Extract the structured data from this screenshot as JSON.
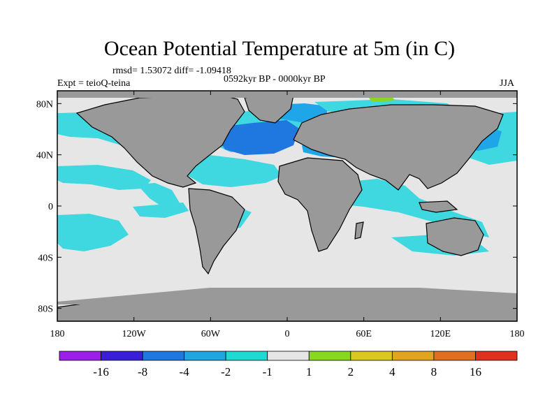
{
  "title": "Ocean Potential Temperature at 5m (in C)",
  "stats": "rmsd= 1.53072 diff= -1.09418",
  "experiment": "Expt = teioQ-teina",
  "period": "0592kyr BP - 0000kyr BP",
  "season": "JJA",
  "lat_axis": {
    "ticks": [
      {
        "label": "80N",
        "value": 80
      },
      {
        "label": "40N",
        "value": 40
      },
      {
        "label": "0",
        "value": 0
      },
      {
        "label": "40S",
        "value": -40
      },
      {
        "label": "80S",
        "value": -80
      }
    ]
  },
  "lon_axis": {
    "ticks": [
      {
        "label": "180",
        "value": -180
      },
      {
        "label": "120W",
        "value": -120
      },
      {
        "label": "60W",
        "value": -60
      },
      {
        "label": "0",
        "value": 0
      },
      {
        "label": "60E",
        "value": 60
      },
      {
        "label": "120E",
        "value": 120
      },
      {
        "label": "180",
        "value": 180
      }
    ]
  },
  "colorbar": {
    "bins": [
      {
        "color": "#9b1fe8"
      },
      {
        "color": "#3b1fd8"
      },
      {
        "color": "#1f78e0"
      },
      {
        "color": "#1fa6e0"
      },
      {
        "color": "#1fdad0"
      },
      {
        "color": "#e6e6e6"
      },
      {
        "color": "#88d81f"
      },
      {
        "color": "#d8c81f"
      },
      {
        "color": "#e0a41f"
      },
      {
        "color": "#e0701f"
      },
      {
        "color": "#e0301f"
      }
    ],
    "labels": [
      "-16",
      "-8",
      "-4",
      "-2",
      "-1",
      "1",
      "2",
      "4",
      "8",
      "16"
    ]
  },
  "colors": {
    "land": "#999999",
    "neutral": "#e6e6e6",
    "light_cyan": "#3fd8e0",
    "mid_blue": "#1fa6e8",
    "deep_blue": "#1f78e0",
    "green": "#88d81f"
  }
}
